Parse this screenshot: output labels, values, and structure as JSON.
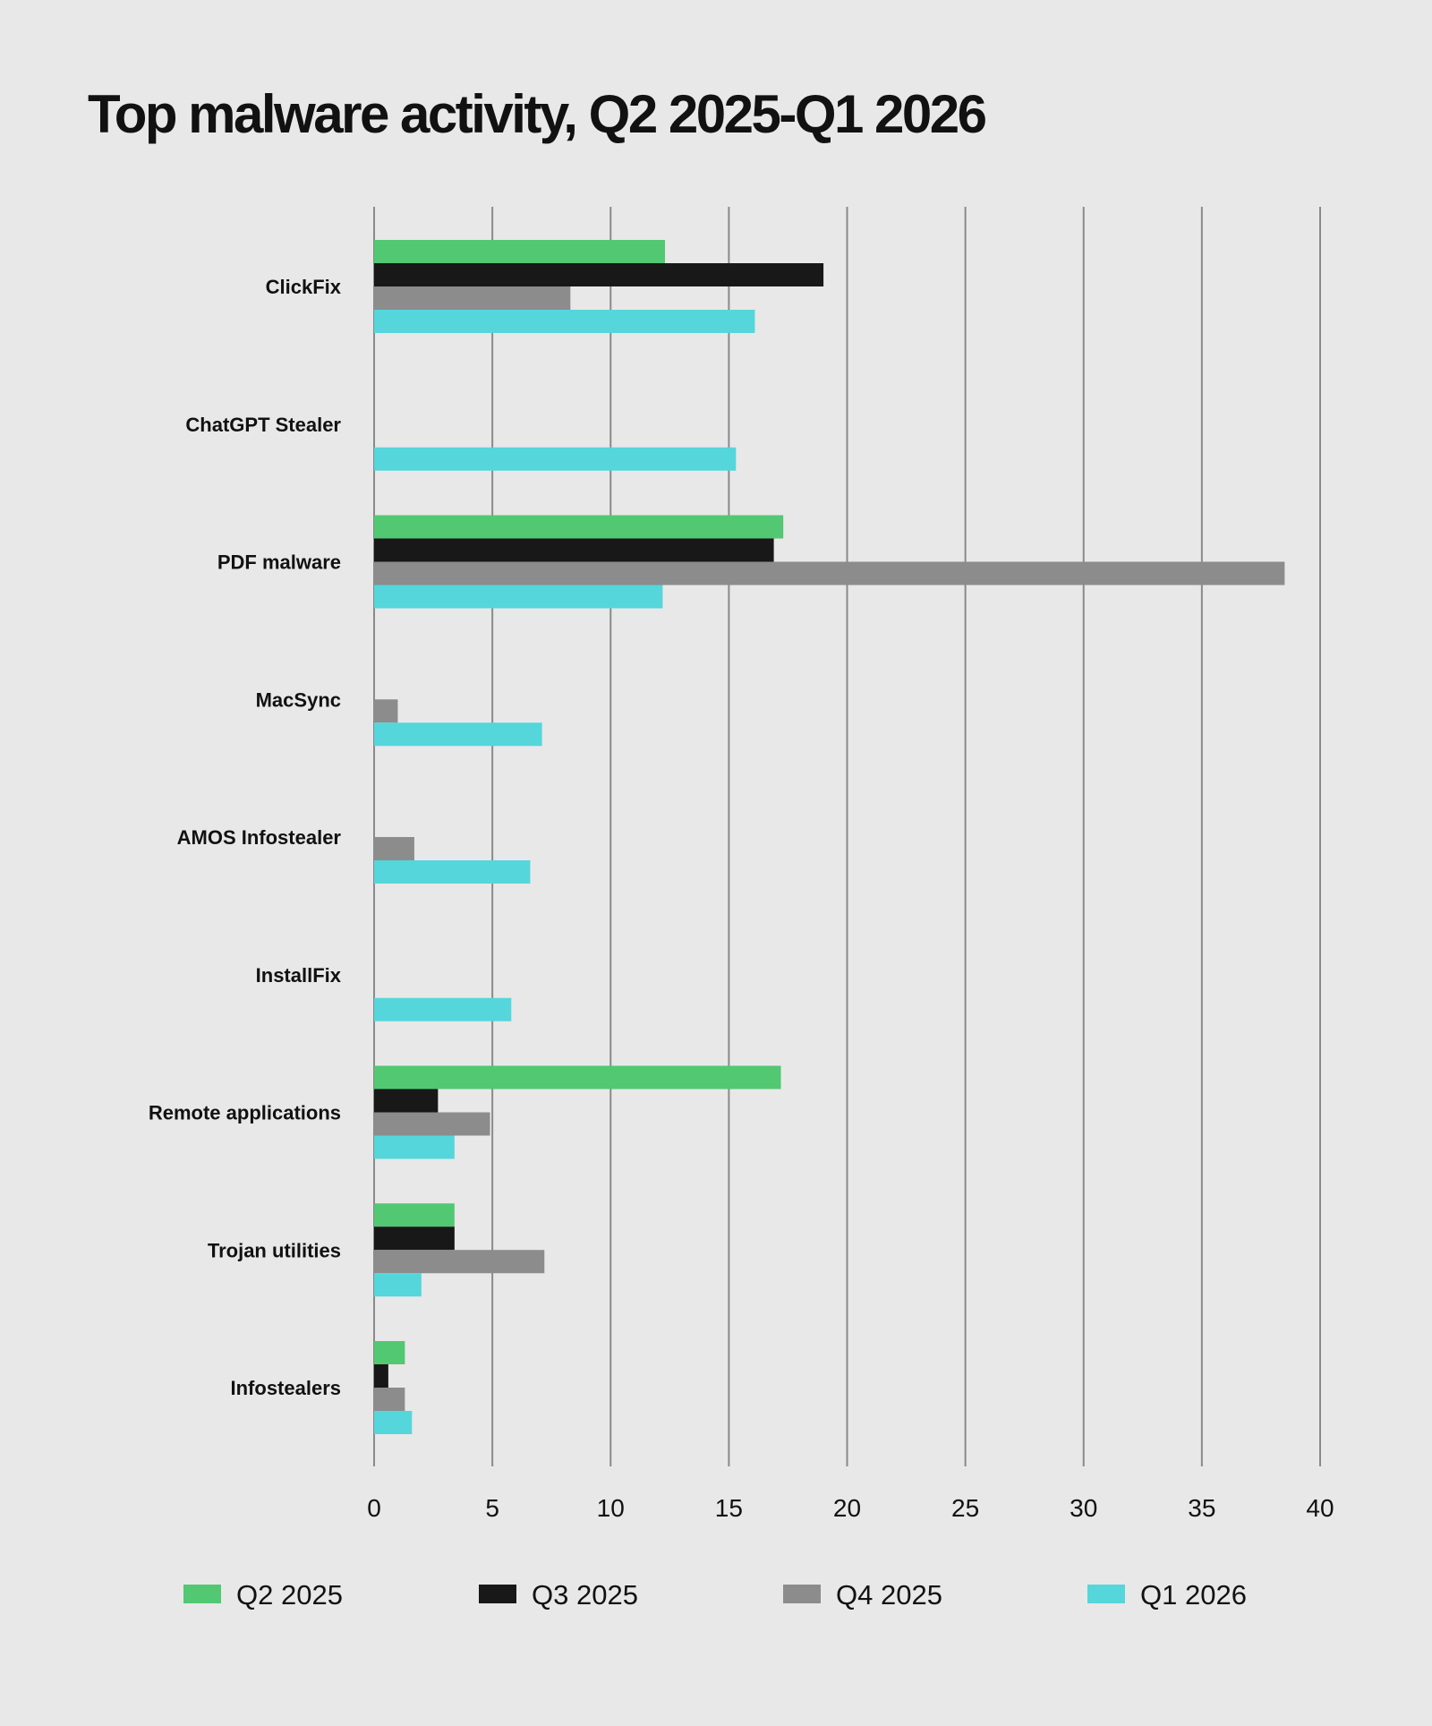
{
  "chart_data": {
    "type": "bar",
    "orientation": "horizontal",
    "title": "Top malware activity, Q2 2025-Q1 2026",
    "categories": [
      "ClickFix",
      "ChatGPT Stealer",
      "PDF malware",
      "MacSync",
      "AMOS Infostealer",
      "InstallFix",
      "Remote applications",
      "Trojan utilities",
      "Infostealers"
    ],
    "series": [
      {
        "name": "Q2 2025",
        "color": "#52c872",
        "values": [
          12.3,
          null,
          17.3,
          null,
          null,
          null,
          17.2,
          3.4,
          1.3
        ]
      },
      {
        "name": "Q3 2025",
        "color": "#181818",
        "values": [
          19.0,
          null,
          16.9,
          null,
          null,
          null,
          2.7,
          3.4,
          0.6
        ]
      },
      {
        "name": "Q4 2025",
        "color": "#8c8c8c",
        "values": [
          8.3,
          null,
          38.5,
          1.0,
          1.7,
          null,
          4.9,
          7.2,
          1.3
        ]
      },
      {
        "name": "Q1 2026",
        "color": "#55d6db",
        "values": [
          16.1,
          15.3,
          12.2,
          7.1,
          6.6,
          5.8,
          3.4,
          2.0,
          1.6
        ]
      }
    ],
    "xlim": [
      0,
      40
    ],
    "xticks": [
      0,
      5,
      10,
      15,
      20,
      25,
      30,
      35,
      40
    ],
    "grid": true,
    "legend_position": "bottom"
  }
}
